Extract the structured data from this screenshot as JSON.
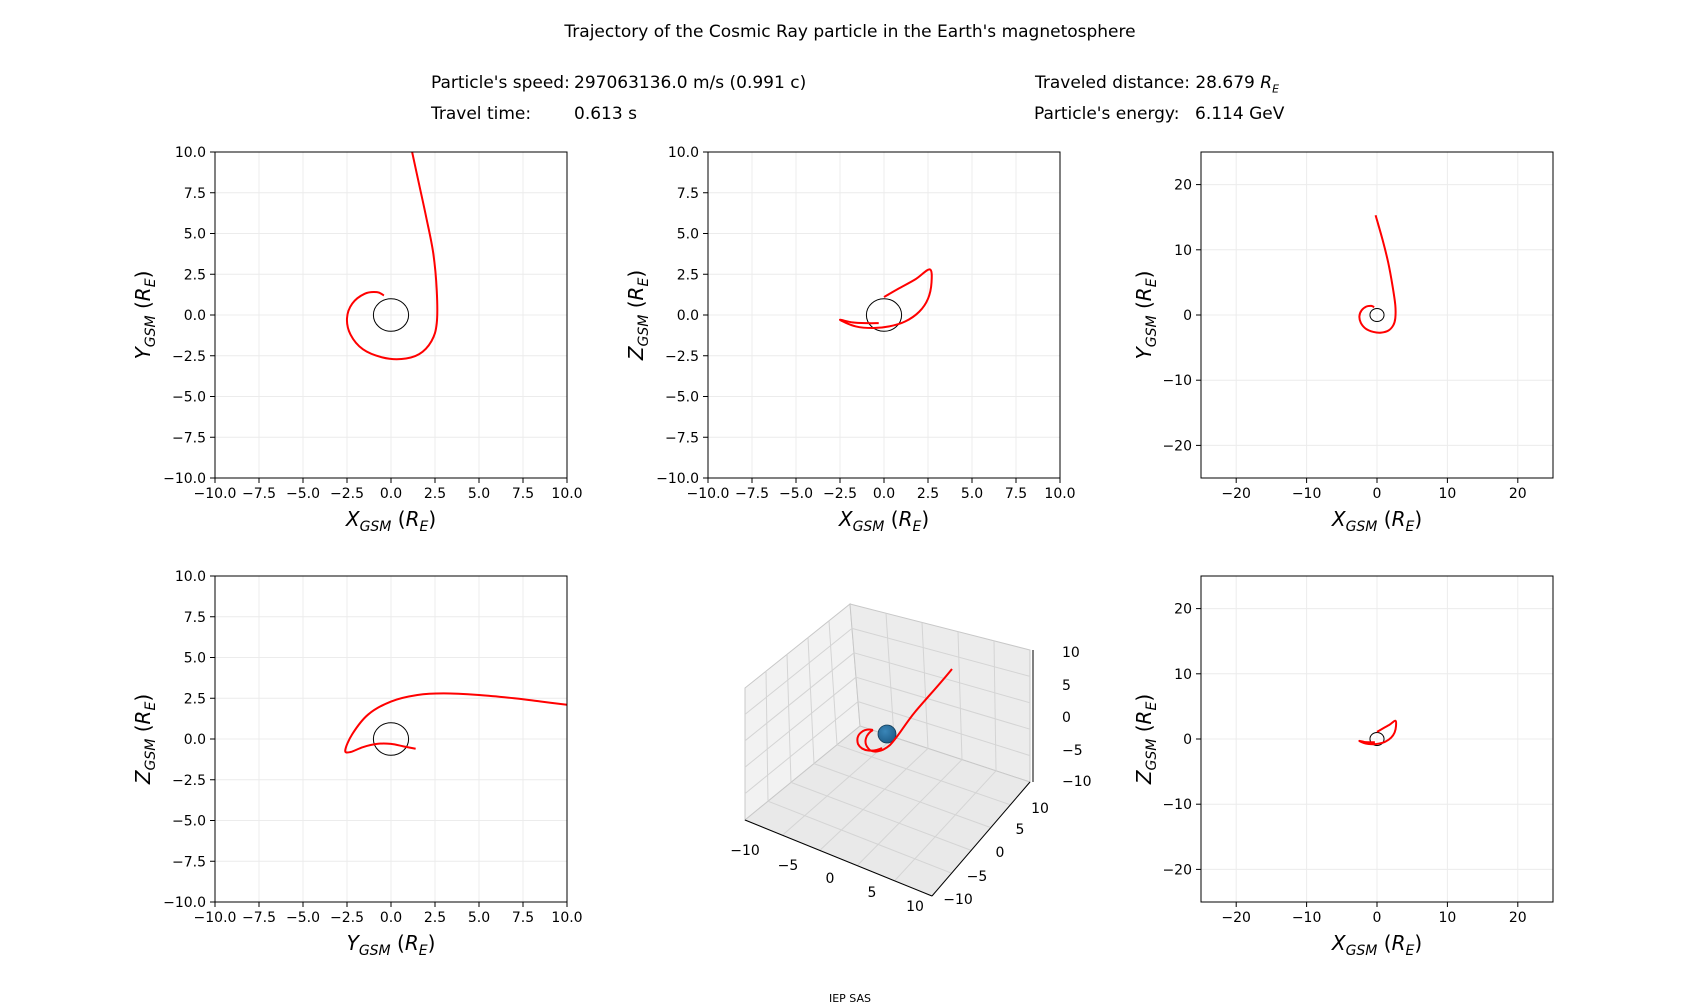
{
  "title": "Trajectory of the Cosmic Ray particle in the Earth's magnetosphere",
  "info": {
    "speed_label": "Particle's speed:",
    "speed_value": "297063136.0 m/s (0.991 c)",
    "time_label": "Travel time:",
    "time_value": "0.613 s",
    "distance_label": "Traveled distance:",
    "distance_value": "28.679",
    "distance_unit": "R",
    "distance_unit_sub": "E",
    "energy_label": "Particle's energy:",
    "energy_value": "6.114 GeV"
  },
  "footer": "IEP SAS",
  "colors": {
    "trajectory": "#ff0000",
    "earth_outline": "#000000",
    "earth_fill_3d": "#1f5f8b",
    "grid": "#ececec"
  },
  "chart_data": [
    {
      "type": "line",
      "panel": "top-left",
      "xlabel": {
        "var": "X",
        "sub": "GSM",
        "unit": "R",
        "unit_sub": "E"
      },
      "ylabel": {
        "var": "Y",
        "sub": "GSM",
        "unit": "R",
        "unit_sub": "E"
      },
      "xlim": [
        -10,
        10
      ],
      "ylim": [
        -10,
        10
      ],
      "xticks": [
        "−10.0",
        "−7.5",
        "−5.0",
        "−2.5",
        "0.0",
        "2.5",
        "5.0",
        "7.5",
        "10.0"
      ],
      "yticks": [
        "−10.0",
        "−7.5",
        "−5.0",
        "−2.5",
        "0.0",
        "2.5",
        "5.0",
        "7.5",
        "10.0"
      ],
      "tick_values": [
        -10,
        -7.5,
        -5,
        -2.5,
        0,
        2.5,
        5,
        7.5,
        10
      ],
      "earth_radius": 1,
      "grid": true,
      "series": [
        {
          "x": [
            -0.4,
            -0.8,
            -1.5,
            -2.2,
            -2.5,
            -2.3,
            -1.6,
            -0.5,
            0.6,
            1.6,
            2.3,
            2.6,
            2.6,
            2.4,
            2.0,
            1.6,
            1.2
          ],
          "y": [
            1.2,
            1.4,
            1.3,
            0.7,
            -0.2,
            -1.2,
            -2.1,
            -2.6,
            -2.7,
            -2.4,
            -1.6,
            -0.5,
            1.5,
            3.8,
            6.0,
            8.0,
            10.0
          ]
        }
      ]
    },
    {
      "type": "line",
      "panel": "top-middle",
      "xlabel": {
        "var": "X",
        "sub": "GSM",
        "unit": "R",
        "unit_sub": "E"
      },
      "ylabel": {
        "var": "Z",
        "sub": "GSM",
        "unit": "R",
        "unit_sub": "E"
      },
      "xlim": [
        -10,
        10
      ],
      "ylim": [
        -10,
        10
      ],
      "xticks": [
        "−10.0",
        "−7.5",
        "−5.0",
        "−2.5",
        "0.0",
        "2.5",
        "5.0",
        "7.5",
        "10.0"
      ],
      "yticks": [
        "−10.0",
        "−7.5",
        "−5.0",
        "−2.5",
        "0.0",
        "2.5",
        "5.0",
        "7.5",
        "10.0"
      ],
      "tick_values": [
        -10,
        -7.5,
        -5,
        -2.5,
        0,
        2.5,
        5,
        7.5,
        10
      ],
      "earth_radius": 1,
      "grid": true,
      "series": [
        {
          "x": [
            -0.3,
            -1.0,
            -1.8,
            -2.5,
            -1.6,
            -0.6,
            0.3,
            1.2,
            2.0,
            2.5,
            2.7,
            2.6,
            1.8,
            0.8,
            0.0
          ],
          "y": [
            -0.5,
            -0.5,
            -0.45,
            -0.3,
            -0.7,
            -0.8,
            -0.7,
            -0.4,
            0.2,
            1.0,
            2.0,
            2.8,
            2.2,
            1.6,
            1.1
          ]
        }
      ]
    },
    {
      "type": "line",
      "panel": "top-right",
      "xlabel": {
        "var": "X",
        "sub": "GSM",
        "unit": "R",
        "unit_sub": "E"
      },
      "ylabel": {
        "var": "Y",
        "sub": "GSM",
        "unit": "R",
        "unit_sub": "E"
      },
      "xlim": [
        -25,
        25
      ],
      "ylim": [
        -25,
        25
      ],
      "xticks": [
        "−20",
        "−10",
        "0",
        "10",
        "20"
      ],
      "yticks": [
        "−20",
        "−10",
        "0",
        "10",
        "20"
      ],
      "tick_values": [
        -20,
        -10,
        0,
        10,
        20
      ],
      "earth_radius": 1,
      "grid": true,
      "series": [
        {
          "x": [
            -0.4,
            -0.8,
            -1.5,
            -2.2,
            -2.5,
            -2.3,
            -1.6,
            -0.5,
            0.6,
            1.6,
            2.3,
            2.6,
            2.6,
            2.2,
            1.6,
            0.8,
            -0.2
          ],
          "y": [
            1.2,
            1.4,
            1.3,
            0.7,
            -0.2,
            -1.2,
            -2.1,
            -2.6,
            -2.7,
            -2.4,
            -1.6,
            -0.5,
            1.5,
            4.5,
            8.0,
            11.5,
            15.3
          ]
        }
      ]
    },
    {
      "type": "line",
      "panel": "bottom-left",
      "xlabel": {
        "var": "Y",
        "sub": "GSM",
        "unit": "R",
        "unit_sub": "E"
      },
      "ylabel": {
        "var": "Z",
        "sub": "GSM",
        "unit": "R",
        "unit_sub": "E"
      },
      "xlim": [
        -10,
        10
      ],
      "ylim": [
        -10,
        10
      ],
      "xticks": [
        "−10.0",
        "−7.5",
        "−5.0",
        "−2.5",
        "0.0",
        "2.5",
        "5.0",
        "7.5",
        "10.0"
      ],
      "yticks": [
        "−10.0",
        "−7.5",
        "−5.0",
        "−2.5",
        "0.0",
        "2.5",
        "5.0",
        "7.5",
        "10.0"
      ],
      "tick_values": [
        -10,
        -7.5,
        -5,
        -2.5,
        0,
        2.5,
        5,
        7.5,
        10
      ],
      "earth_radius": 1,
      "grid": true,
      "series": [
        {
          "x": [
            1.4,
            0.7,
            0.0,
            -0.8,
            -1.6,
            -2.3,
            -2.6,
            -2.2,
            -1.3,
            0.0,
            1.5,
            3.0,
            5.0,
            7.0,
            8.5,
            10.0
          ],
          "y": [
            -0.6,
            -0.45,
            -0.3,
            -0.3,
            -0.5,
            -0.8,
            -0.7,
            0.3,
            1.5,
            2.3,
            2.7,
            2.8,
            2.7,
            2.5,
            2.3,
            2.1
          ]
        }
      ]
    },
    {
      "type": "line3d",
      "panel": "bottom-middle",
      "xticks": [
        "−10",
        "−5",
        "0",
        "5",
        "10"
      ],
      "yticks": [
        "−10",
        "−5",
        "0",
        "5",
        "10"
      ],
      "zticks": [
        "−10",
        "−5",
        "0",
        "5",
        "10"
      ],
      "tick_values": [
        -10,
        -5,
        0,
        5,
        10
      ],
      "xlim": [
        -12,
        12
      ],
      "ylim": [
        -12,
        12
      ],
      "zlim": [
        -12,
        12
      ],
      "earth_radius": 1,
      "grid": true
    },
    {
      "type": "line",
      "panel": "bottom-right",
      "xlabel": {
        "var": "X",
        "sub": "GSM",
        "unit": "R",
        "unit_sub": "E"
      },
      "ylabel": {
        "var": "Z",
        "sub": "GSM",
        "unit": "R",
        "unit_sub": "E"
      },
      "xlim": [
        -25,
        25
      ],
      "ylim": [
        -25,
        25
      ],
      "xticks": [
        "−20",
        "−10",
        "0",
        "10",
        "20"
      ],
      "yticks": [
        "−20",
        "−10",
        "0",
        "10",
        "20"
      ],
      "tick_values": [
        -20,
        -10,
        0,
        10,
        20
      ],
      "earth_radius": 1,
      "grid": true,
      "series": [
        {
          "x": [
            -0.3,
            -1.0,
            -1.8,
            -2.5,
            -1.6,
            -0.6,
            0.3,
            1.2,
            2.0,
            2.5,
            2.7,
            2.6,
            1.8,
            0.8,
            0.0
          ],
          "y": [
            -0.5,
            -0.5,
            -0.45,
            -0.3,
            -0.7,
            -0.8,
            -0.7,
            -0.4,
            0.2,
            1.0,
            2.0,
            2.8,
            2.2,
            1.6,
            1.1
          ]
        }
      ]
    }
  ]
}
